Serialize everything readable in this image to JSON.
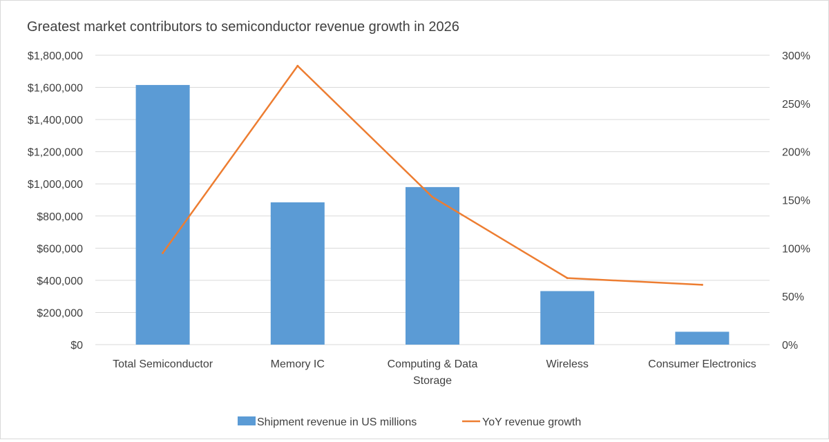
{
  "chart_data": {
    "type": "bar",
    "title": "Greatest market contributors to semiconductor revenue growth in 2026",
    "categories": [
      [
        "Total Semiconductor"
      ],
      [
        "Memory IC"
      ],
      [
        "Computing & Data",
        "Storage"
      ],
      [
        "Wireless"
      ],
      [
        "Consumer Electronics"
      ]
    ],
    "category_names": [
      "Total Semiconductor",
      "Memory IC",
      "Computing & Data Storage",
      "Wireless",
      "Consumer Electronics"
    ],
    "series": [
      {
        "name": "Shipment revenue in US millions",
        "type": "bar",
        "axis": "left",
        "color": "#5b9bd5",
        "values": [
          1615000,
          885000,
          980000,
          333000,
          80000
        ]
      },
      {
        "name": "YoY revenue growth",
        "type": "line",
        "axis": "right",
        "color": "#ed7d31",
        "values": [
          0.95,
          2.89,
          1.53,
          0.69,
          0.62
        ]
      }
    ],
    "y_left": {
      "ylim": [
        0,
        1800000
      ],
      "ticks": [
        0,
        200000,
        400000,
        600000,
        800000,
        1000000,
        1200000,
        1400000,
        1600000,
        1800000
      ],
      "tick_labels": [
        "$0",
        "$200,000",
        "$400,000",
        "$600,000",
        "$800,000",
        "$1,000,000",
        "$1,200,000",
        "$1,400,000",
        "$1,600,000",
        "$1,800,000"
      ]
    },
    "y_right": {
      "ylim": [
        0,
        3
      ],
      "ticks": [
        0,
        0.5,
        1,
        1.5,
        2,
        2.5,
        3
      ],
      "tick_labels": [
        "0%",
        "50%",
        "100%",
        "150%",
        "200%",
        "250%",
        "300%"
      ]
    },
    "grid": true,
    "legend": "bottom",
    "colors": {
      "gridline": "#d9d9d9",
      "text": "#404040"
    }
  }
}
